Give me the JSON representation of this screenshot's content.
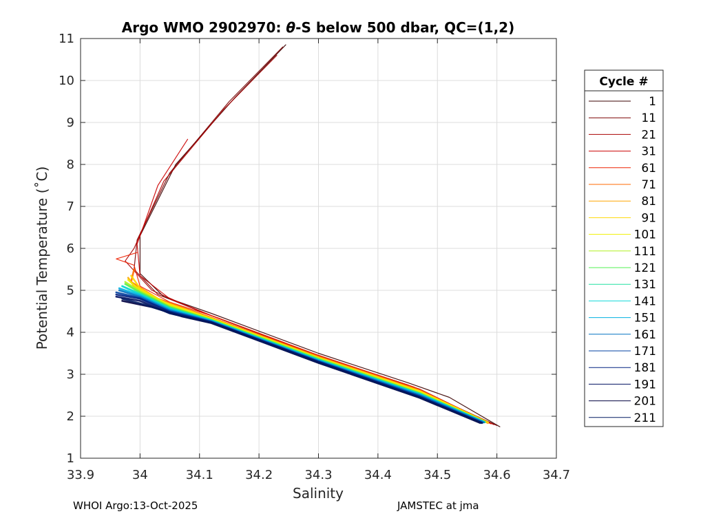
{
  "chart_data": {
    "type": "line",
    "title_pre": "Argo WMO 2902970: ",
    "title_theta": "θ",
    "title_post": "-S below 500 dbar,  QC=(1,2)",
    "xlabel": "Salinity",
    "ylabel": "Potential Temperature (˚C)",
    "xlim": [
      33.9,
      34.7
    ],
    "ylim": [
      1,
      11
    ],
    "xticks": [
      33.9,
      34.0,
      34.1,
      34.2,
      34.3,
      34.4,
      34.5,
      34.6,
      34.7
    ],
    "xtick_labels": [
      "33.9",
      "34",
      "34.1",
      "34.2",
      "34.3",
      "34.4",
      "34.5",
      "34.6",
      "34.7"
    ],
    "yticks": [
      1,
      2,
      3,
      4,
      5,
      6,
      7,
      8,
      9,
      10,
      11
    ],
    "yticklabels": [
      "1",
      "2",
      "3",
      "4",
      "5",
      "6",
      "7",
      "8",
      "9",
      "10",
      "11"
    ],
    "grid": true,
    "legend_title": "Cycle #",
    "legend_position": "right",
    "series": [
      {
        "name": "1",
        "color": "#3a0000",
        "points": [
          [
            34.245,
            10.85
          ],
          [
            34.16,
            9.6
          ],
          [
            34.06,
            8.0
          ],
          [
            34.0,
            6.3
          ],
          [
            34.0,
            5.4
          ],
          [
            34.04,
            4.85
          ],
          [
            34.12,
            4.45
          ],
          [
            34.3,
            3.5
          ],
          [
            34.45,
            2.8
          ],
          [
            34.52,
            2.45
          ],
          [
            34.605,
            1.75
          ]
        ]
      },
      {
        "name": "11",
        "color": "#7a0000",
        "points": [
          [
            34.24,
            10.8
          ],
          [
            34.15,
            9.5
          ],
          [
            34.05,
            7.8
          ],
          [
            33.995,
            6.2
          ],
          [
            33.99,
            5.5
          ],
          [
            34.03,
            4.9
          ],
          [
            34.11,
            4.45
          ],
          [
            34.29,
            3.48
          ],
          [
            34.45,
            2.75
          ],
          [
            34.6,
            1.78
          ]
        ]
      },
      {
        "name": "21",
        "color": "#a80000",
        "points": [
          [
            34.23,
            10.6
          ],
          [
            34.14,
            9.3
          ],
          [
            34.04,
            7.6
          ],
          [
            33.99,
            6.0
          ],
          [
            33.975,
            5.7
          ],
          [
            34.02,
            5.0
          ],
          [
            34.1,
            4.5
          ],
          [
            34.28,
            3.55
          ],
          [
            34.44,
            2.78
          ],
          [
            34.595,
            1.8
          ]
        ]
      },
      {
        "name": "31",
        "color": "#cc0000",
        "points": [
          [
            34.08,
            8.6
          ],
          [
            34.03,
            7.5
          ],
          [
            33.995,
            6.1
          ],
          [
            34.0,
            5.35
          ],
          [
            34.05,
            4.8
          ],
          [
            34.12,
            4.4
          ],
          [
            34.3,
            3.45
          ],
          [
            34.47,
            2.65
          ],
          [
            34.59,
            1.82
          ]
        ]
      },
      {
        "name": "61",
        "color": "#ee2000",
        "points": [
          [
            33.995,
            5.9
          ],
          [
            33.96,
            5.75
          ],
          [
            33.99,
            5.6
          ],
          [
            34.0,
            5.1
          ],
          [
            34.05,
            4.72
          ],
          [
            34.13,
            4.35
          ],
          [
            34.3,
            3.45
          ],
          [
            34.46,
            2.7
          ],
          [
            34.59,
            1.82
          ]
        ]
      },
      {
        "name": "71",
        "color": "#ff6a00",
        "points": [
          [
            33.99,
            5.5
          ],
          [
            33.985,
            5.2
          ],
          [
            34.03,
            4.8
          ],
          [
            34.12,
            4.35
          ],
          [
            34.3,
            3.42
          ],
          [
            34.47,
            2.62
          ],
          [
            34.585,
            1.84
          ]
        ]
      },
      {
        "name": "81",
        "color": "#ffa500",
        "points": [
          [
            33.98,
            5.3
          ],
          [
            33.99,
            5.1
          ],
          [
            34.03,
            4.75
          ],
          [
            34.12,
            4.33
          ],
          [
            34.3,
            3.4
          ],
          [
            34.47,
            2.6
          ],
          [
            34.585,
            1.85
          ]
        ]
      },
      {
        "name": "91",
        "color": "#ffd700",
        "points": [
          [
            33.985,
            5.35
          ],
          [
            34.0,
            5.05
          ],
          [
            34.04,
            4.72
          ],
          [
            34.12,
            4.33
          ],
          [
            34.3,
            3.4
          ],
          [
            34.47,
            2.6
          ],
          [
            34.585,
            1.85
          ]
        ]
      },
      {
        "name": "101",
        "color": "#f0f000",
        "points": [
          [
            33.98,
            5.25
          ],
          [
            34.0,
            5.0
          ],
          [
            34.05,
            4.65
          ],
          [
            34.12,
            4.32
          ],
          [
            34.3,
            3.38
          ],
          [
            34.47,
            2.58
          ],
          [
            34.58,
            1.86
          ]
        ]
      },
      {
        "name": "111",
        "color": "#b0f020",
        "points": [
          [
            33.975,
            5.2
          ],
          [
            34.0,
            4.98
          ],
          [
            34.05,
            4.62
          ],
          [
            34.12,
            4.3
          ],
          [
            34.3,
            3.38
          ],
          [
            34.47,
            2.56
          ],
          [
            34.58,
            1.86
          ]
        ]
      },
      {
        "name": "121",
        "color": "#50f050",
        "points": [
          [
            33.975,
            5.15
          ],
          [
            34.0,
            4.95
          ],
          [
            34.05,
            4.6
          ],
          [
            34.12,
            4.3
          ],
          [
            34.3,
            3.36
          ],
          [
            34.47,
            2.55
          ],
          [
            34.58,
            1.86
          ]
        ]
      },
      {
        "name": "131",
        "color": "#20e0a0",
        "points": [
          [
            33.97,
            5.1
          ],
          [
            34.0,
            4.92
          ],
          [
            34.05,
            4.58
          ],
          [
            34.12,
            4.28
          ],
          [
            34.3,
            3.35
          ],
          [
            34.47,
            2.54
          ],
          [
            34.58,
            1.86
          ]
        ]
      },
      {
        "name": "141",
        "color": "#10d8d8",
        "points": [
          [
            33.97,
            5.1
          ],
          [
            34.0,
            4.9
          ],
          [
            34.05,
            4.56
          ],
          [
            34.12,
            4.28
          ],
          [
            34.3,
            3.34
          ],
          [
            34.47,
            2.53
          ],
          [
            34.578,
            1.86
          ]
        ]
      },
      {
        "name": "151",
        "color": "#00b0e0",
        "points": [
          [
            33.965,
            5.05
          ],
          [
            34.0,
            4.88
          ],
          [
            34.05,
            4.55
          ],
          [
            34.12,
            4.27
          ],
          [
            34.3,
            3.33
          ],
          [
            34.47,
            2.52
          ],
          [
            34.578,
            1.86
          ]
        ]
      },
      {
        "name": "161",
        "color": "#0070c0",
        "points": [
          [
            33.965,
            5.0
          ],
          [
            34.0,
            4.85
          ],
          [
            34.05,
            4.52
          ],
          [
            34.12,
            4.26
          ],
          [
            34.3,
            3.32
          ],
          [
            34.47,
            2.5
          ],
          [
            34.578,
            1.85
          ]
        ]
      },
      {
        "name": "171",
        "color": "#0040a0",
        "points": [
          [
            33.96,
            4.95
          ],
          [
            34.0,
            4.82
          ],
          [
            34.05,
            4.5
          ],
          [
            34.12,
            4.25
          ],
          [
            34.3,
            3.3
          ],
          [
            34.47,
            2.48
          ],
          [
            34.575,
            1.85
          ]
        ]
      },
      {
        "name": "181",
        "color": "#002080",
        "points": [
          [
            33.96,
            4.9
          ],
          [
            34.0,
            4.8
          ],
          [
            34.05,
            4.48
          ],
          [
            34.12,
            4.24
          ],
          [
            34.3,
            3.3
          ],
          [
            34.47,
            2.46
          ],
          [
            34.575,
            1.84
          ]
        ]
      },
      {
        "name": "191",
        "color": "#001060",
        "points": [
          [
            33.96,
            4.85
          ],
          [
            34.0,
            4.75
          ],
          [
            34.05,
            4.45
          ],
          [
            34.12,
            4.23
          ],
          [
            34.3,
            3.28
          ],
          [
            34.47,
            2.45
          ],
          [
            34.575,
            1.84
          ]
        ]
      },
      {
        "name": "201",
        "color": "#000040",
        "points": [
          [
            33.97,
            4.75
          ],
          [
            34.02,
            4.6
          ],
          [
            34.07,
            4.38
          ],
          [
            34.12,
            4.22
          ],
          [
            34.3,
            3.27
          ],
          [
            34.47,
            2.44
          ],
          [
            34.572,
            1.84
          ]
        ]
      },
      {
        "name": "211",
        "color": "#001a60",
        "points": [
          [
            33.97,
            4.8
          ],
          [
            34.01,
            4.65
          ],
          [
            34.06,
            4.42
          ],
          [
            34.12,
            4.23
          ],
          [
            34.3,
            3.28
          ],
          [
            34.47,
            2.45
          ],
          [
            34.575,
            1.84
          ]
        ]
      }
    ]
  },
  "footer": {
    "left": "WHOI Argo:13-Oct-2025",
    "right": "JAMSTEC at jma"
  }
}
